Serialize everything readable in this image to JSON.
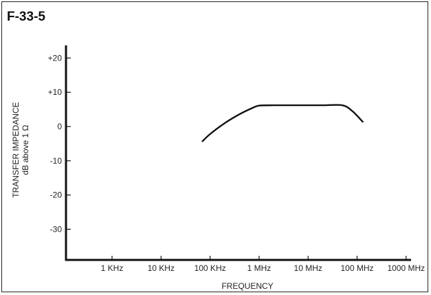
{
  "figure_id": "F-33-5",
  "chart_data": {
    "type": "line",
    "title": "",
    "xlabel": "FREQUENCY",
    "ylabel": "TRANSFER IMPEDANCE",
    "ylabel_sub": "dB above 1 Ω",
    "x_scale": "log",
    "xlim_hz": [
      100,
      1000000000
    ],
    "ylim": [
      -38,
      24
    ],
    "x_ticks": [
      {
        "label": "1 KHz",
        "value": 1000
      },
      {
        "label": "10 KHz",
        "value": 10000
      },
      {
        "label": "100 KHz",
        "value": 100000
      },
      {
        "label": "1 MHz",
        "value": 1000000
      },
      {
        "label": "10 MHz",
        "value": 10000000
      },
      {
        "label": "100 MHz",
        "value": 100000000
      },
      {
        "label": "1000 MHz",
        "value": 1000000000
      }
    ],
    "y_ticks": [
      {
        "label": "+20",
        "value": 20
      },
      {
        "label": "+10",
        "value": 10
      },
      {
        "label": "0",
        "value": 0
      },
      {
        "label": "-10",
        "value": -10
      },
      {
        "label": "-20",
        "value": -20
      },
      {
        "label": "-30",
        "value": -30
      }
    ],
    "grid": false,
    "series": [
      {
        "color": "#111111",
        "x": [
          70000,
          100000,
          200000,
          400000,
          700000,
          1000000,
          2000000,
          5000000,
          10000000,
          20000000,
          50000000,
          80000000,
          130000000
        ],
        "y": [
          -4.3,
          -2.2,
          1.0,
          3.6,
          5.3,
          6.1,
          6.2,
          6.2,
          6.2,
          6.2,
          6.2,
          4.5,
          1.4
        ]
      }
    ]
  }
}
